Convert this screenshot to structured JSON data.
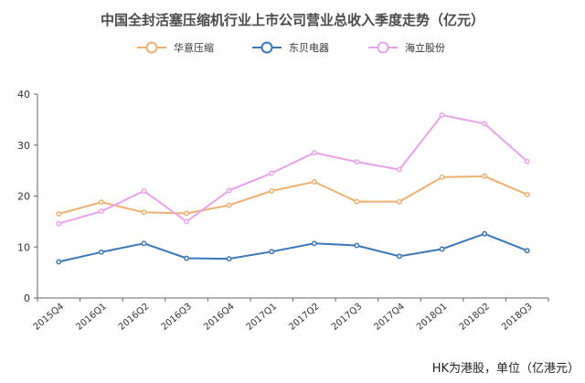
{
  "chart_data": {
    "type": "line",
    "title": "中国全封活塞压缩机行业上市公司营业总收入季度走势（亿元）",
    "note": "HK为港股，单位（亿港元）",
    "categories": [
      "2015Q4",
      "2016Q1",
      "2016Q2",
      "2016Q3",
      "2016Q4",
      "2017Q1",
      "2017Q2",
      "2017Q3",
      "2017Q4",
      "2018Q1",
      "2018Q2",
      "2018Q3"
    ],
    "ylim": [
      0,
      40
    ],
    "yticks": [
      0,
      10,
      20,
      30,
      40
    ],
    "grid": false,
    "legend_position": "top",
    "series": [
      {
        "name": "华意压缩",
        "color": "#f0b070",
        "values": [
          16.5,
          18.8,
          16.8,
          16.6,
          18.2,
          21.0,
          22.8,
          18.9,
          18.9,
          23.7,
          23.9,
          20.3
        ]
      },
      {
        "name": "东贝电器",
        "color": "#3a78b9",
        "values": [
          7.1,
          9.0,
          10.7,
          7.8,
          7.7,
          9.1,
          10.7,
          10.3,
          8.2,
          9.6,
          12.6,
          9.3
        ]
      },
      {
        "name": "海立股份",
        "color": "#eaa2ec",
        "values": [
          14.6,
          17.0,
          21.0,
          15.0,
          21.1,
          24.5,
          28.5,
          26.7,
          25.2,
          35.9,
          34.2,
          26.8
        ]
      }
    ]
  }
}
